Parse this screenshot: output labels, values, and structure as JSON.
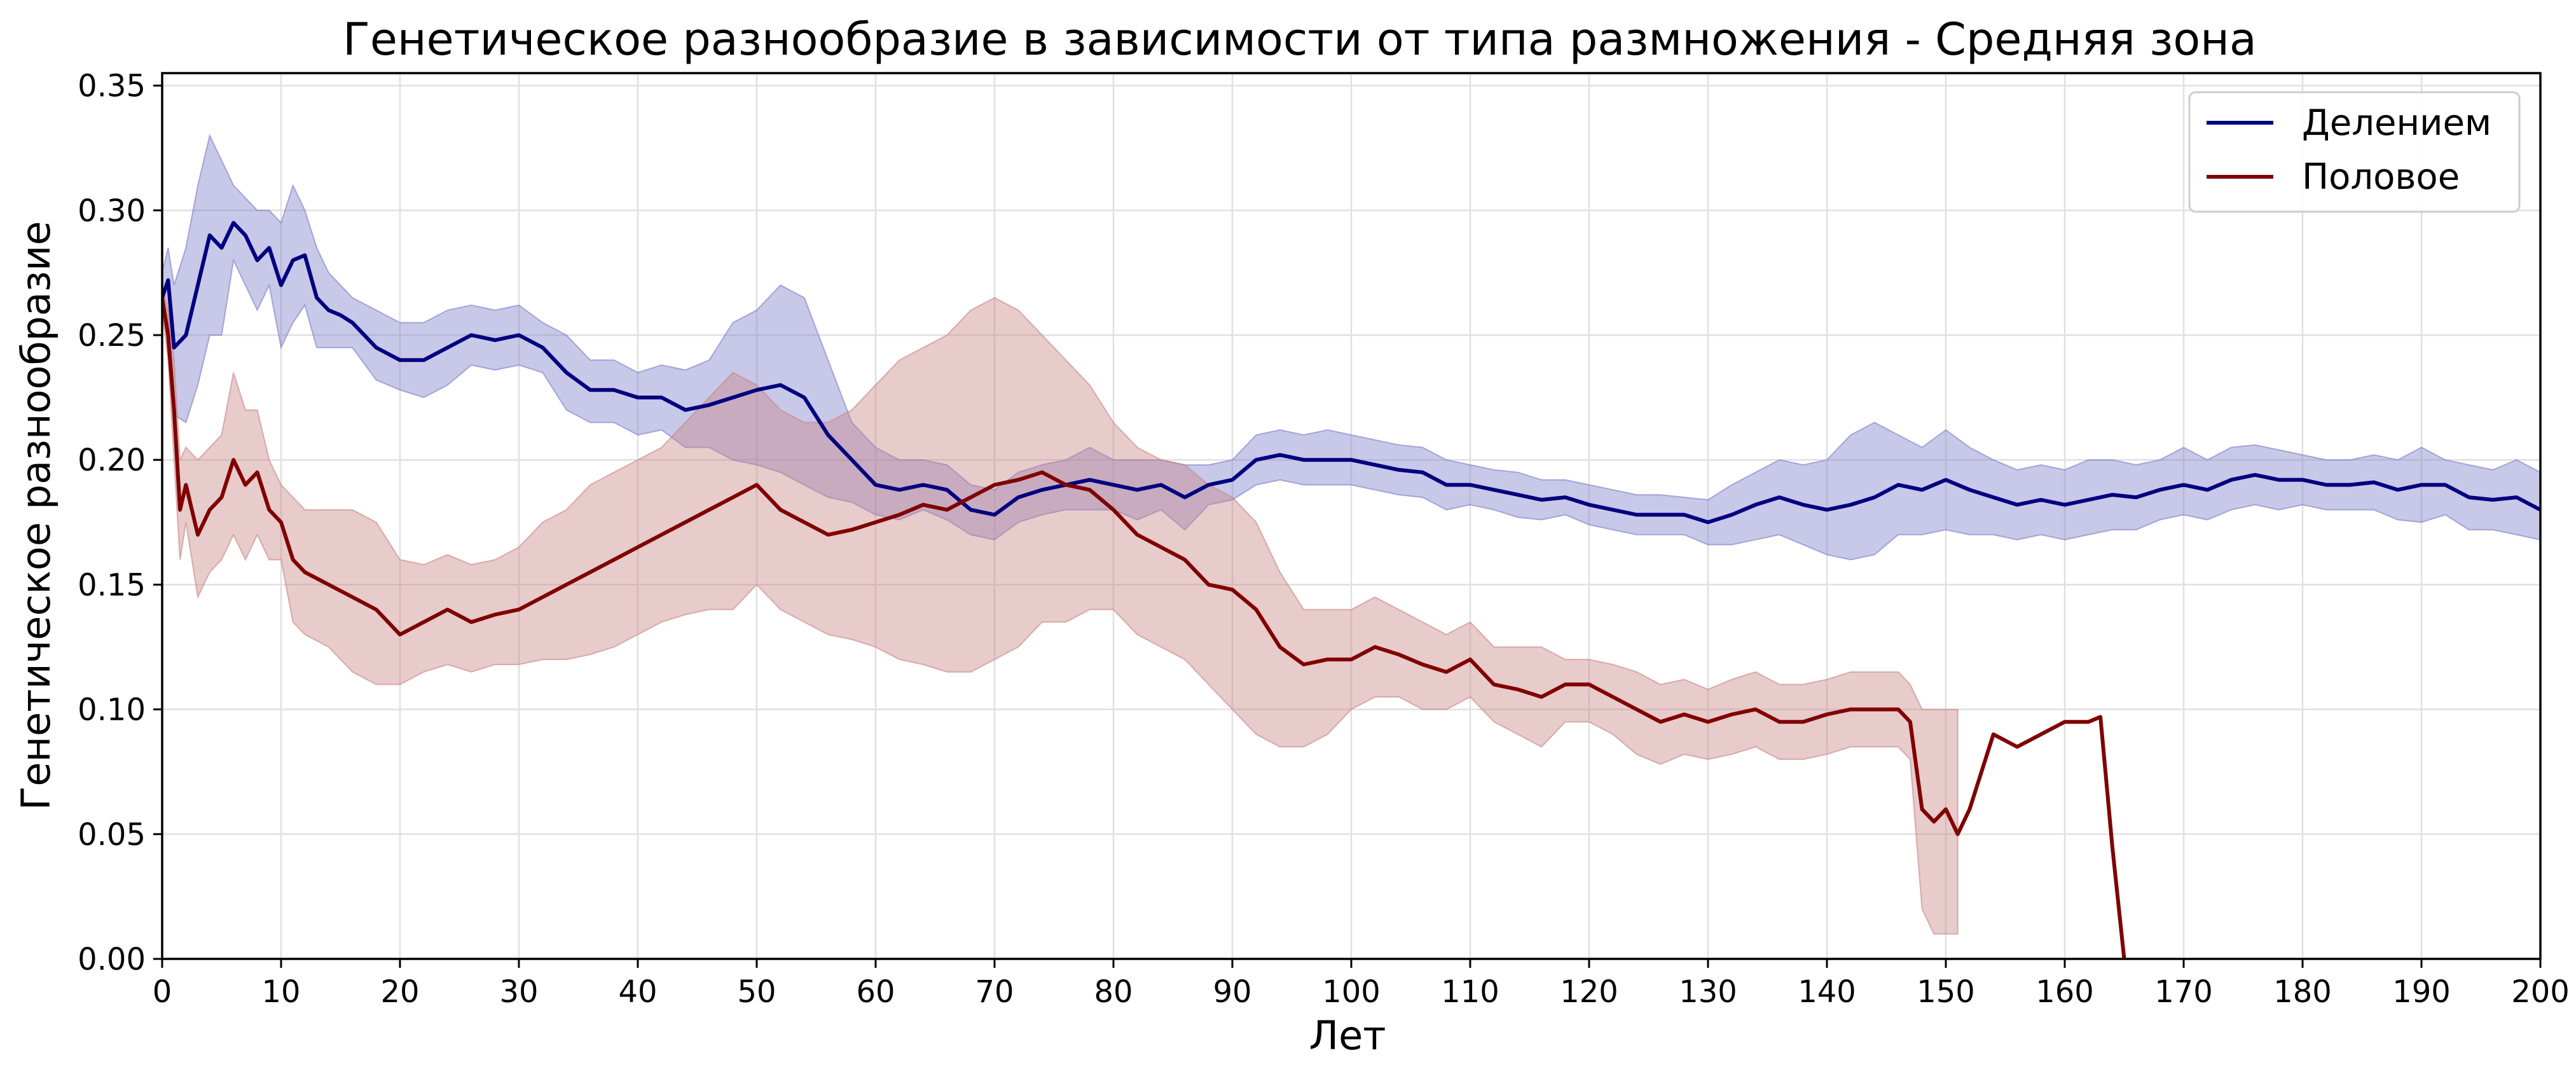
{
  "chart_data": {
    "type": "line",
    "title": "Генетическое разнообразие в зависимости от типа размножения - Средняя зона",
    "xlabel": "Лет",
    "ylabel": "Генетическое разнообразие",
    "xlim": [
      0,
      200
    ],
    "ylim": [
      0,
      0.355
    ],
    "x_ticks": [
      "0",
      "10",
      "20",
      "30",
      "40",
      "50",
      "60",
      "70",
      "80",
      "90",
      "100",
      "110",
      "120",
      "130",
      "140",
      "150",
      "160",
      "170",
      "180",
      "190",
      "200"
    ],
    "y_ticks": [
      "0.00",
      "0.05",
      "0.10",
      "0.15",
      "0.20",
      "0.25",
      "0.30",
      "0.35"
    ],
    "grid": true,
    "legend_position": "top-right",
    "colors": {
      "Делением": "#000080",
      "Половое": "#800000"
    },
    "series": [
      {
        "name": "Делением",
        "color": "#000080",
        "band_color": "#7b7bc8",
        "x": [
          0,
          0.5,
          1,
          2,
          3,
          4,
          5,
          6,
          7,
          8,
          9,
          10,
          11,
          12,
          13,
          14,
          15,
          16,
          18,
          20,
          22,
          24,
          26,
          28,
          30,
          32,
          34,
          36,
          38,
          40,
          42,
          44,
          46,
          48,
          50,
          52,
          54,
          56,
          58,
          60,
          62,
          64,
          66,
          68,
          70,
          72,
          74,
          76,
          78,
          80,
          82,
          84,
          86,
          88,
          90,
          92,
          94,
          96,
          98,
          100,
          102,
          104,
          106,
          108,
          110,
          112,
          114,
          116,
          118,
          120,
          122,
          124,
          126,
          128,
          130,
          132,
          134,
          136,
          138,
          140,
          142,
          144,
          146,
          148,
          150,
          152,
          154,
          156,
          158,
          160,
          162,
          164,
          166,
          168,
          170,
          172,
          174,
          176,
          178,
          180,
          182,
          184,
          186,
          188,
          190,
          192,
          194,
          196,
          198,
          200
        ],
        "mean": [
          0.265,
          0.272,
          0.245,
          0.25,
          0.27,
          0.29,
          0.285,
          0.295,
          0.29,
          0.28,
          0.285,
          0.27,
          0.28,
          0.282,
          0.265,
          0.26,
          0.258,
          0.255,
          0.245,
          0.24,
          0.24,
          0.245,
          0.25,
          0.248,
          0.25,
          0.245,
          0.235,
          0.228,
          0.228,
          0.225,
          0.225,
          0.22,
          0.222,
          0.225,
          0.228,
          0.23,
          0.225,
          0.21,
          0.2,
          0.19,
          0.188,
          0.19,
          0.188,
          0.18,
          0.178,
          0.185,
          0.188,
          0.19,
          0.192,
          0.19,
          0.188,
          0.19,
          0.185,
          0.19,
          0.192,
          0.2,
          0.202,
          0.2,
          0.2,
          0.2,
          0.198,
          0.196,
          0.195,
          0.19,
          0.19,
          0.188,
          0.186,
          0.184,
          0.185,
          0.182,
          0.18,
          0.178,
          0.178,
          0.178,
          0.175,
          0.178,
          0.182,
          0.185,
          0.182,
          0.18,
          0.182,
          0.185,
          0.19,
          0.188,
          0.192,
          0.188,
          0.185,
          0.182,
          0.184,
          0.182,
          0.184,
          0.186,
          0.185,
          0.188,
          0.19,
          0.188,
          0.192,
          0.194,
          0.192,
          0.192,
          0.19,
          0.19,
          0.191,
          0.188,
          0.19,
          0.19,
          0.185,
          0.184,
          0.185,
          0.18
        ],
        "upper": [
          0.275,
          0.285,
          0.27,
          0.285,
          0.31,
          0.33,
          0.32,
          0.31,
          0.305,
          0.3,
          0.3,
          0.295,
          0.31,
          0.3,
          0.285,
          0.275,
          0.27,
          0.265,
          0.26,
          0.255,
          0.255,
          0.26,
          0.262,
          0.26,
          0.262,
          0.255,
          0.25,
          0.24,
          0.24,
          0.235,
          0.238,
          0.236,
          0.24,
          0.255,
          0.26,
          0.27,
          0.265,
          0.24,
          0.215,
          0.205,
          0.2,
          0.2,
          0.198,
          0.19,
          0.188,
          0.195,
          0.198,
          0.2,
          0.205,
          0.2,
          0.2,
          0.2,
          0.198,
          0.198,
          0.2,
          0.21,
          0.212,
          0.21,
          0.212,
          0.21,
          0.208,
          0.206,
          0.205,
          0.2,
          0.198,
          0.196,
          0.195,
          0.192,
          0.192,
          0.19,
          0.188,
          0.186,
          0.186,
          0.185,
          0.184,
          0.19,
          0.195,
          0.2,
          0.198,
          0.2,
          0.21,
          0.215,
          0.21,
          0.205,
          0.212,
          0.205,
          0.2,
          0.196,
          0.198,
          0.196,
          0.2,
          0.2,
          0.198,
          0.2,
          0.205,
          0.2,
          0.205,
          0.206,
          0.204,
          0.202,
          0.2,
          0.2,
          0.202,
          0.2,
          0.205,
          0.2,
          0.198,
          0.196,
          0.2,
          0.195
        ],
        "lower": [
          0.255,
          0.258,
          0.218,
          0.215,
          0.23,
          0.25,
          0.25,
          0.28,
          0.27,
          0.26,
          0.27,
          0.245,
          0.255,
          0.262,
          0.245,
          0.245,
          0.245,
          0.245,
          0.232,
          0.228,
          0.225,
          0.23,
          0.238,
          0.236,
          0.238,
          0.235,
          0.22,
          0.215,
          0.215,
          0.21,
          0.212,
          0.205,
          0.205,
          0.2,
          0.198,
          0.195,
          0.19,
          0.185,
          0.183,
          0.178,
          0.176,
          0.18,
          0.176,
          0.17,
          0.168,
          0.175,
          0.178,
          0.18,
          0.18,
          0.18,
          0.176,
          0.18,
          0.172,
          0.182,
          0.184,
          0.19,
          0.192,
          0.19,
          0.19,
          0.19,
          0.188,
          0.186,
          0.185,
          0.18,
          0.182,
          0.18,
          0.177,
          0.176,
          0.178,
          0.174,
          0.172,
          0.17,
          0.17,
          0.17,
          0.166,
          0.166,
          0.168,
          0.17,
          0.166,
          0.162,
          0.16,
          0.162,
          0.17,
          0.17,
          0.172,
          0.17,
          0.17,
          0.168,
          0.17,
          0.168,
          0.17,
          0.172,
          0.172,
          0.176,
          0.178,
          0.176,
          0.18,
          0.182,
          0.18,
          0.182,
          0.18,
          0.18,
          0.18,
          0.176,
          0.175,
          0.178,
          0.172,
          0.172,
          0.17,
          0.168
        ]
      },
      {
        "name": "Половое",
        "color": "#800000",
        "band_color": "#c88484",
        "x": [
          0,
          0.5,
          1,
          1.5,
          2,
          3,
          4,
          5,
          6,
          7,
          8,
          9,
          10,
          11,
          12,
          14,
          16,
          18,
          20,
          22,
          24,
          26,
          28,
          30,
          32,
          34,
          36,
          38,
          40,
          42,
          44,
          46,
          48,
          50,
          52,
          54,
          56,
          58,
          60,
          62,
          64,
          66,
          68,
          70,
          72,
          74,
          76,
          78,
          80,
          82,
          84,
          86,
          88,
          90,
          92,
          94,
          96,
          98,
          100,
          102,
          104,
          106,
          108,
          110,
          112,
          114,
          116,
          118,
          120,
          122,
          124,
          126,
          128,
          130,
          132,
          134,
          136,
          138,
          140,
          142,
          144,
          146,
          147,
          148,
          149,
          150,
          151,
          152,
          154,
          156,
          158,
          160,
          162,
          163,
          164,
          165
        ],
        "mean": [
          0.265,
          0.25,
          0.22,
          0.18,
          0.19,
          0.17,
          0.18,
          0.185,
          0.2,
          0.19,
          0.195,
          0.18,
          0.175,
          0.16,
          0.155,
          0.15,
          0.145,
          0.14,
          0.13,
          0.135,
          0.14,
          0.135,
          0.138,
          0.14,
          0.145,
          0.15,
          0.155,
          0.16,
          0.165,
          0.17,
          0.175,
          0.18,
          0.185,
          0.19,
          0.18,
          0.175,
          0.17,
          0.172,
          0.175,
          0.178,
          0.182,
          0.18,
          0.185,
          0.19,
          0.192,
          0.195,
          0.19,
          0.188,
          0.18,
          0.17,
          0.165,
          0.16,
          0.15,
          0.148,
          0.14,
          0.125,
          0.118,
          0.12,
          0.12,
          0.125,
          0.122,
          0.118,
          0.115,
          0.12,
          0.11,
          0.108,
          0.105,
          0.11,
          0.11,
          0.105,
          0.1,
          0.095,
          0.098,
          0.095,
          0.098,
          0.1,
          0.095,
          0.095,
          0.098,
          0.1,
          0.1,
          0.1,
          0.095,
          0.06,
          0.055,
          0.06,
          0.05,
          0.06,
          0.09,
          0.085,
          0.09,
          0.095,
          0.095,
          0.097,
          0.045,
          0.0
        ],
        "upper": [
          0.27,
          0.26,
          0.24,
          0.2,
          0.205,
          0.2,
          0.205,
          0.21,
          0.235,
          0.22,
          0.22,
          0.2,
          0.19,
          0.185,
          0.18,
          0.18,
          0.18,
          0.175,
          0.16,
          0.158,
          0.162,
          0.158,
          0.16,
          0.165,
          0.175,
          0.18,
          0.19,
          0.195,
          0.2,
          0.205,
          0.215,
          0.225,
          0.235,
          0.23,
          0.22,
          0.215,
          0.215,
          0.22,
          0.23,
          0.24,
          0.245,
          0.25,
          0.26,
          0.265,
          0.26,
          0.25,
          0.24,
          0.23,
          0.215,
          0.205,
          0.2,
          0.198,
          0.19,
          0.185,
          0.175,
          0.155,
          0.14,
          0.14,
          0.14,
          0.145,
          0.14,
          0.135,
          0.13,
          0.135,
          0.125,
          0.125,
          0.125,
          0.12,
          0.12,
          0.118,
          0.115,
          0.11,
          0.112,
          0.108,
          0.112,
          0.115,
          0.11,
          0.11,
          0.112,
          0.115,
          0.115,
          0.115,
          0.11,
          0.1,
          0.1,
          0.1,
          0.1,
          null,
          null,
          null,
          null,
          null,
          null,
          null,
          null,
          null
        ],
        "lower": [
          0.26,
          0.24,
          0.2,
          0.16,
          0.175,
          0.145,
          0.155,
          0.16,
          0.17,
          0.16,
          0.17,
          0.16,
          0.16,
          0.135,
          0.13,
          0.125,
          0.115,
          0.11,
          0.11,
          0.115,
          0.118,
          0.115,
          0.118,
          0.118,
          0.12,
          0.12,
          0.122,
          0.125,
          0.13,
          0.135,
          0.138,
          0.14,
          0.14,
          0.15,
          0.14,
          0.135,
          0.13,
          0.128,
          0.125,
          0.12,
          0.118,
          0.115,
          0.115,
          0.12,
          0.125,
          0.135,
          0.135,
          0.14,
          0.14,
          0.13,
          0.125,
          0.12,
          0.11,
          0.1,
          0.09,
          0.085,
          0.085,
          0.09,
          0.1,
          0.105,
          0.105,
          0.1,
          0.1,
          0.105,
          0.095,
          0.09,
          0.085,
          0.095,
          0.095,
          0.09,
          0.082,
          0.078,
          0.082,
          0.08,
          0.082,
          0.085,
          0.08,
          0.08,
          0.082,
          0.085,
          0.085,
          0.085,
          0.08,
          0.02,
          0.01,
          0.01,
          0.01,
          null,
          null,
          null,
          null,
          null,
          null,
          null,
          null,
          null
        ]
      }
    ]
  }
}
